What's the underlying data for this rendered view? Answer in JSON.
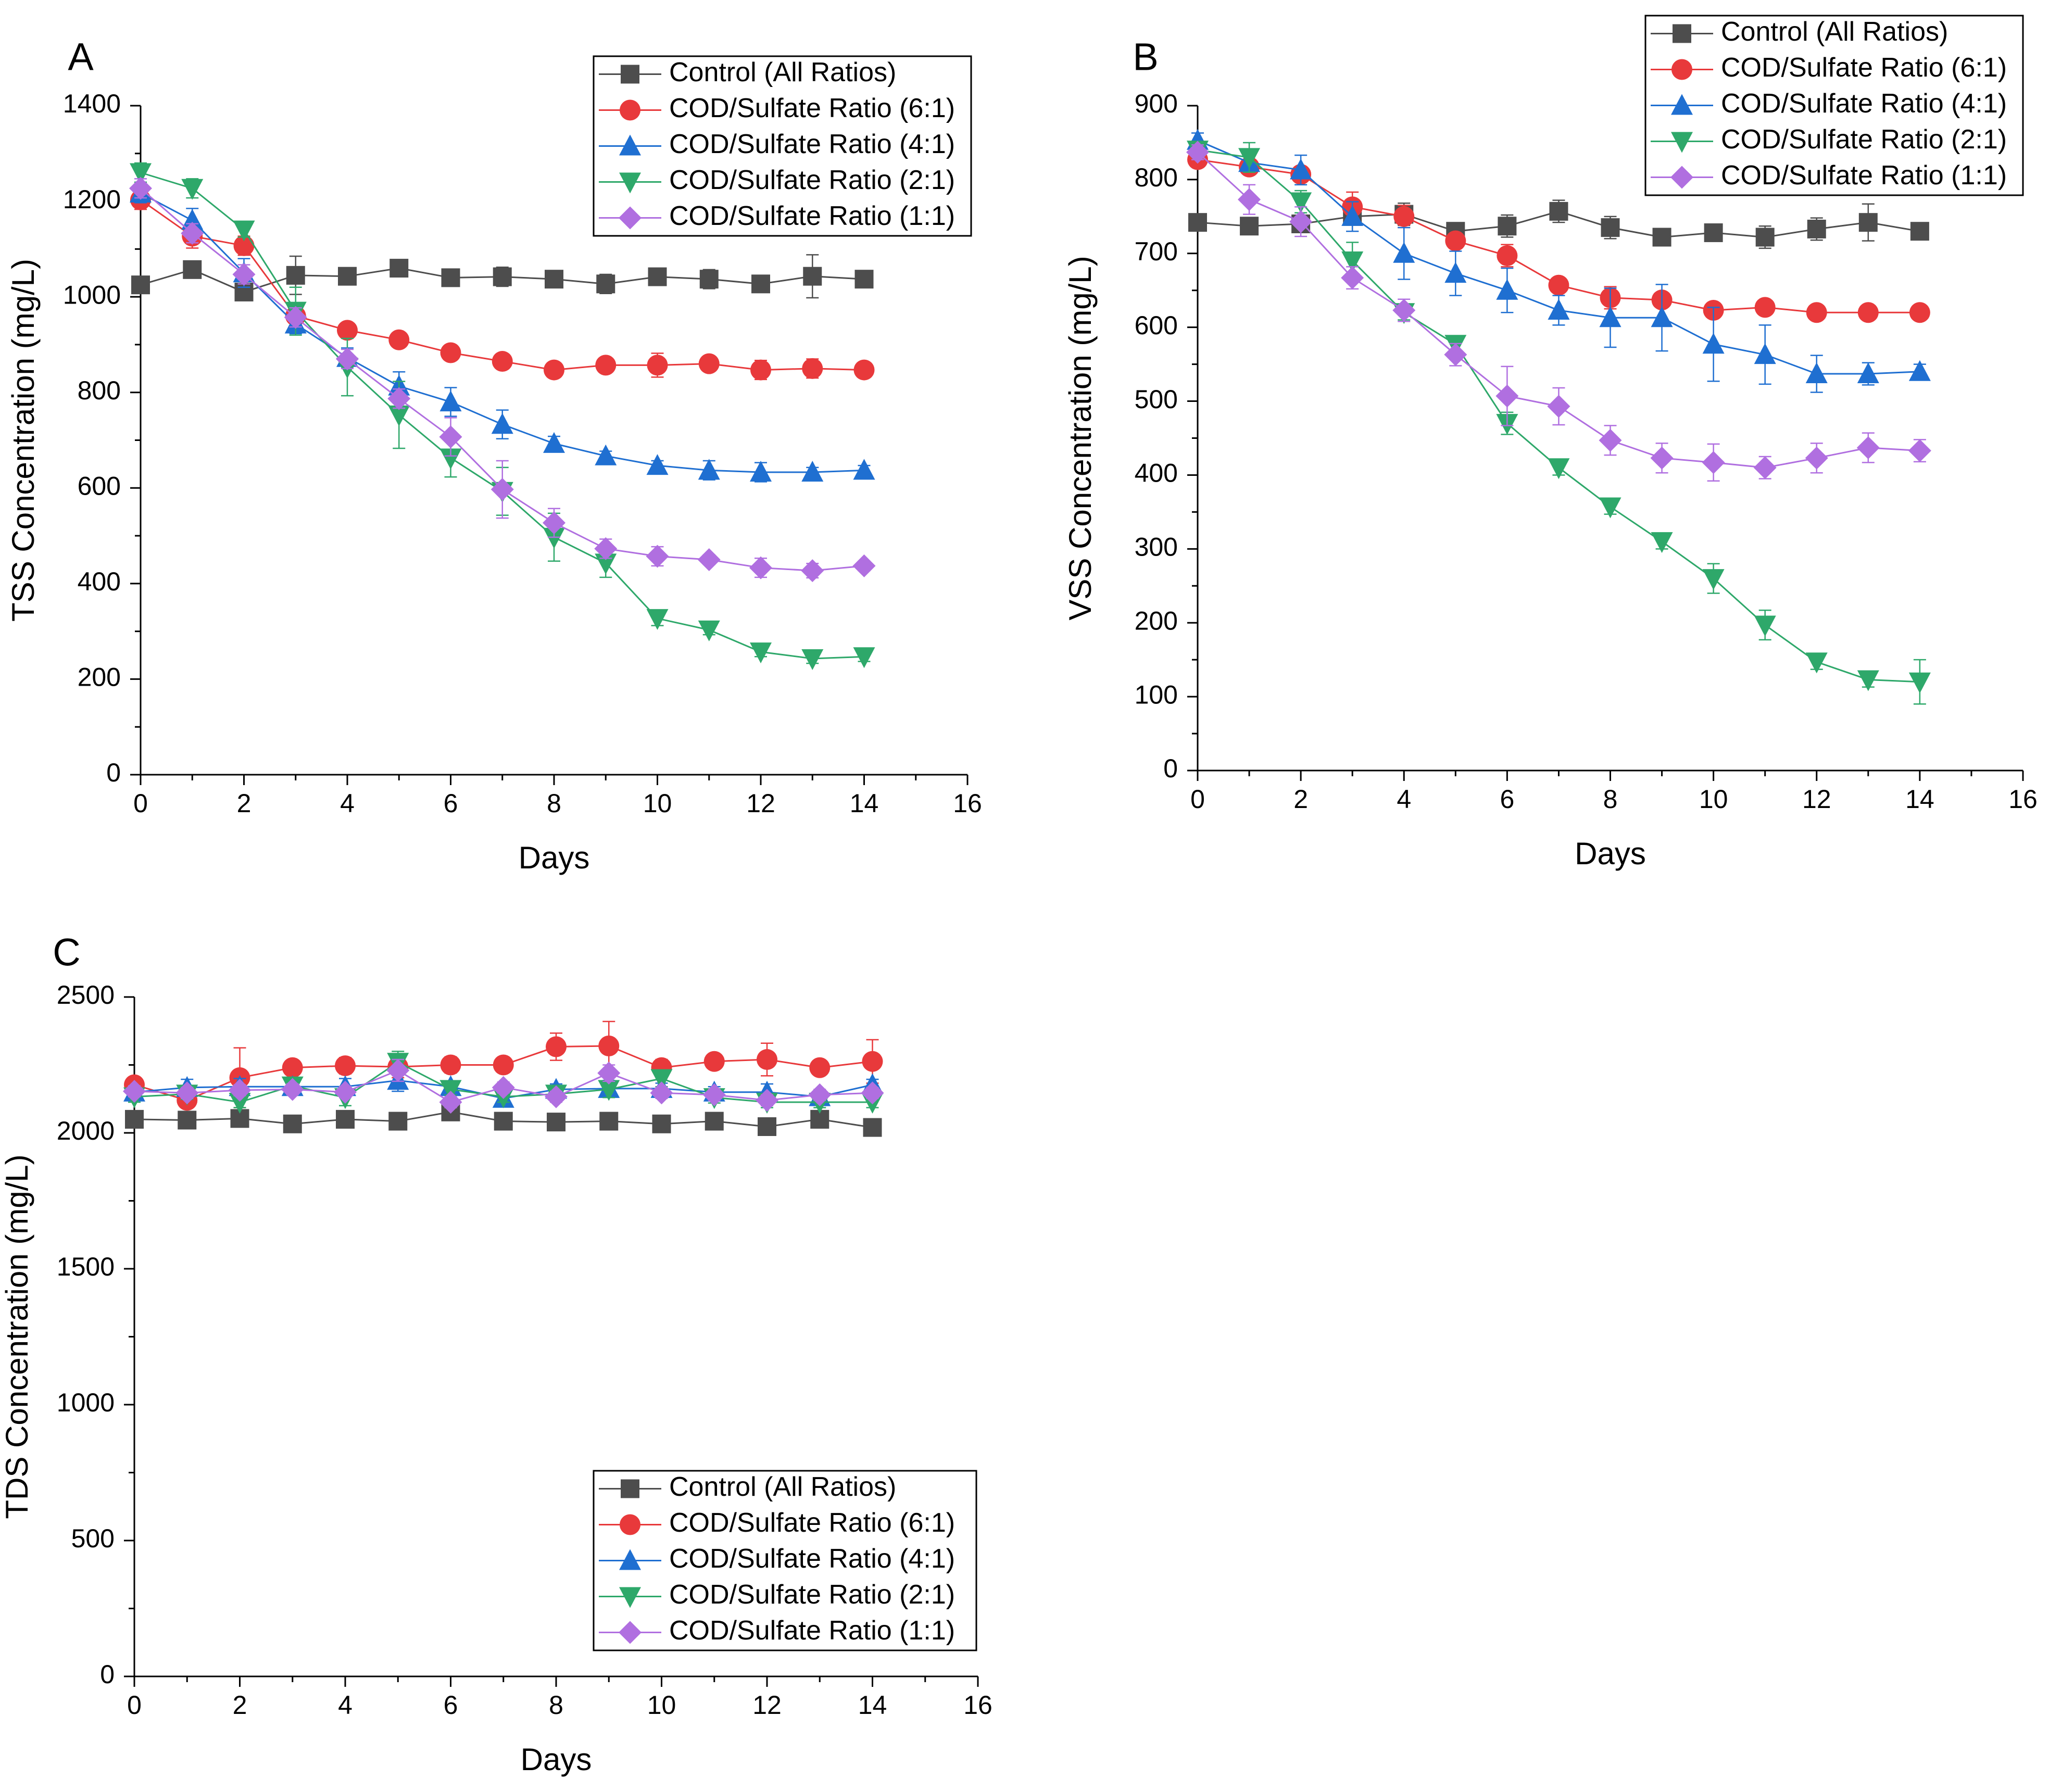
{
  "chart_data": [
    {
      "type": "line",
      "panel_label": "A",
      "xlabel": "Days",
      "ylabel": "TSS Concentration (mg/L)",
      "xlim": [
        0,
        16
      ],
      "ylim": [
        0,
        1400
      ],
      "xticks": [
        0,
        2,
        4,
        6,
        8,
        10,
        12,
        14,
        16
      ],
      "yticks": [
        0,
        200,
        400,
        600,
        800,
        1000,
        1200,
        1400
      ],
      "legend_position": "top-right",
      "grid": false,
      "x": [
        0,
        1,
        2,
        3,
        4,
        5,
        6,
        7,
        8,
        9,
        10,
        11,
        12,
        13,
        14
      ],
      "series": [
        {
          "name": "Control (All Ratios)",
          "color": "#4d4d4d",
          "marker": "square",
          "values": [
            1025,
            1057,
            1010,
            1045,
            1043,
            1060,
            1040,
            1042,
            1037,
            1027,
            1042,
            1037,
            1027,
            1043,
            1037
          ],
          "errors": [
            10,
            10,
            15,
            40,
            10,
            10,
            15,
            20,
            15,
            20,
            10,
            20,
            10,
            45,
            10
          ]
        },
        {
          "name": "COD/Sulfate Ratio (6:1)",
          "color": "#e8393b",
          "marker": "circle",
          "values": [
            1203,
            1127,
            1107,
            960,
            930,
            910,
            883,
            865,
            847,
            857,
            857,
            860,
            847,
            850,
            847
          ],
          "errors": [
            20,
            25,
            20,
            15,
            10,
            10,
            10,
            10,
            10,
            15,
            25,
            10,
            20,
            20,
            10
          ]
        },
        {
          "name": "COD/Sulfate Ratio (4:1)",
          "color": "#1f6fd1",
          "marker": "triangle-up",
          "values": [
            1217,
            1160,
            1050,
            943,
            873,
            813,
            780,
            733,
            693,
            667,
            647,
            637,
            633,
            633,
            637
          ],
          "errors": [
            20,
            25,
            30,
            20,
            20,
            30,
            30,
            30,
            15,
            10,
            10,
            20,
            20,
            10,
            10
          ]
        },
        {
          "name": "COD/Sulfate Ratio (2:1)",
          "color": "#2ea86a",
          "marker": "triangle-down",
          "values": [
            1260,
            1227,
            1140,
            970,
            853,
            753,
            663,
            593,
            497,
            443,
            327,
            303,
            257,
            243,
            247
          ],
          "errors": [
            20,
            20,
            15,
            50,
            60,
            70,
            40,
            50,
            50,
            30,
            15,
            10,
            10,
            10,
            10
          ]
        },
        {
          "name": "COD/Sulfate Ratio (1:1)",
          "color": "#b06fe0",
          "marker": "diamond",
          "values": [
            1227,
            1133,
            1047,
            957,
            870,
            787,
            707,
            597,
            527,
            473,
            457,
            450,
            433,
            427,
            437
          ],
          "errors": [
            20,
            20,
            20,
            20,
            20,
            20,
            40,
            60,
            30,
            20,
            20,
            10,
            20,
            15,
            10
          ]
        }
      ]
    },
    {
      "type": "line",
      "panel_label": "B",
      "xlabel": "Days",
      "ylabel": "VSS Concentration (mg/L)",
      "xlim": [
        0,
        16
      ],
      "ylim": [
        0,
        900
      ],
      "xticks": [
        0,
        2,
        4,
        6,
        8,
        10,
        12,
        14,
        16
      ],
      "yticks": [
        0,
        100,
        200,
        300,
        400,
        500,
        600,
        700,
        800,
        900
      ],
      "legend_position": "top-right",
      "grid": false,
      "x": [
        0,
        1,
        2,
        3,
        4,
        5,
        6,
        7,
        8,
        9,
        10,
        11,
        12,
        13,
        14
      ],
      "series": [
        {
          "name": "Control (All Ratios)",
          "color": "#4d4d4d",
          "marker": "square",
          "values": [
            742,
            737,
            740,
            750,
            753,
            730,
            737,
            757,
            735,
            722,
            728,
            722,
            733,
            742,
            730
          ],
          "errors": [
            10,
            10,
            10,
            20,
            15,
            10,
            15,
            15,
            15,
            10,
            10,
            15,
            15,
            25,
            10
          ]
        },
        {
          "name": "COD/Sulfate Ratio (6:1)",
          "color": "#e8393b",
          "marker": "circle",
          "values": [
            827,
            817,
            807,
            763,
            750,
            717,
            697,
            657,
            640,
            637,
            623,
            627,
            620,
            620,
            620
          ],
          "errors": [
            10,
            10,
            10,
            20,
            15,
            10,
            15,
            10,
            15,
            10,
            10,
            10,
            10,
            10,
            10
          ]
        },
        {
          "name": "COD/Sulfate Ratio (4:1)",
          "color": "#1f6fd1",
          "marker": "triangle-up",
          "values": [
            853,
            823,
            813,
            750,
            700,
            673,
            650,
            623,
            613,
            613,
            577,
            563,
            537,
            537,
            540
          ],
          "errors": [
            10,
            10,
            20,
            20,
            35,
            30,
            30,
            20,
            40,
            45,
            50,
            40,
            25,
            15,
            10
          ]
        },
        {
          "name": "COD/Sulfate Ratio (2:1)",
          "color": "#2ea86a",
          "marker": "triangle-down",
          "values": [
            840,
            830,
            770,
            690,
            620,
            577,
            470,
            410,
            357,
            310,
            260,
            197,
            147,
            123,
            120
          ],
          "errors": [
            10,
            20,
            15,
            25,
            10,
            10,
            15,
            10,
            10,
            10,
            20,
            20,
            10,
            10,
            30
          ]
        },
        {
          "name": "COD/Sulfate Ratio (1:1)",
          "color": "#b06fe0",
          "marker": "diamond",
          "values": [
            837,
            773,
            743,
            667,
            623,
            563,
            507,
            493,
            447,
            423,
            417,
            410,
            423,
            437,
            433
          ],
          "errors": [
            10,
            20,
            20,
            15,
            15,
            15,
            40,
            25,
            20,
            20,
            25,
            15,
            20,
            20,
            15
          ]
        }
      ]
    },
    {
      "type": "line",
      "panel_label": "C",
      "xlabel": "Days",
      "ylabel": "TDS Concentration (mg/L)",
      "xlim": [
        0,
        16
      ],
      "ylim": [
        0,
        2500
      ],
      "xticks": [
        0,
        2,
        4,
        6,
        8,
        10,
        12,
        14,
        16
      ],
      "yticks": [
        0,
        500,
        1000,
        1500,
        2000,
        2500
      ],
      "legend_position": "bottom-center",
      "grid": false,
      "x": [
        0,
        1,
        2,
        3,
        4,
        5,
        6,
        7,
        8,
        9,
        10,
        11,
        12,
        13,
        14
      ],
      "series": [
        {
          "name": "Control (All Ratios)",
          "color": "#4d4d4d",
          "marker": "square",
          "values": [
            2050,
            2047,
            2053,
            2033,
            2050,
            2043,
            2077,
            2043,
            2040,
            2043,
            2033,
            2043,
            2023,
            2050,
            2020
          ],
          "errors": [
            20,
            30,
            20,
            25,
            15,
            15,
            20,
            15,
            15,
            30,
            15,
            20,
            25,
            20,
            15
          ]
        },
        {
          "name": "COD/Sulfate Ratio (6:1)",
          "color": "#e8393b",
          "marker": "circle",
          "values": [
            2177,
            2120,
            2203,
            2240,
            2247,
            2243,
            2250,
            2250,
            2317,
            2320,
            2240,
            2263,
            2270,
            2240,
            2263
          ],
          "errors": [
            20,
            20,
            110,
            20,
            30,
            40,
            30,
            20,
            50,
            90,
            30,
            20,
            60,
            20,
            80
          ]
        },
        {
          "name": "COD/Sulfate Ratio (4:1)",
          "color": "#1f6fd1",
          "marker": "triangle-up",
          "values": [
            2150,
            2167,
            2170,
            2170,
            2170,
            2193,
            2170,
            2127,
            2160,
            2163,
            2163,
            2150,
            2150,
            2133,
            2177
          ],
          "errors": [
            20,
            30,
            30,
            20,
            30,
            40,
            20,
            20,
            20,
            30,
            20,
            20,
            30,
            20,
            20
          ]
        },
        {
          "name": "COD/Sulfate Ratio (2:1)",
          "color": "#2ea86a",
          "marker": "triangle-down",
          "values": [
            2133,
            2143,
            2113,
            2173,
            2130,
            2260,
            2160,
            2133,
            2143,
            2160,
            2200,
            2130,
            2113,
            2113,
            2113
          ],
          "errors": [
            20,
            20,
            20,
            20,
            30,
            40,
            20,
            20,
            20,
            30,
            30,
            20,
            20,
            20,
            20
          ]
        },
        {
          "name": "COD/Sulfate Ratio (1:1)",
          "color": "#b06fe0",
          "marker": "diamond",
          "values": [
            2153,
            2147,
            2157,
            2160,
            2150,
            2230,
            2113,
            2167,
            2133,
            2220,
            2147,
            2140,
            2120,
            2140,
            2147
          ],
          "errors": [
            20,
            20,
            20,
            20,
            20,
            40,
            20,
            20,
            20,
            30,
            20,
            20,
            20,
            20,
            20
          ]
        }
      ]
    }
  ]
}
